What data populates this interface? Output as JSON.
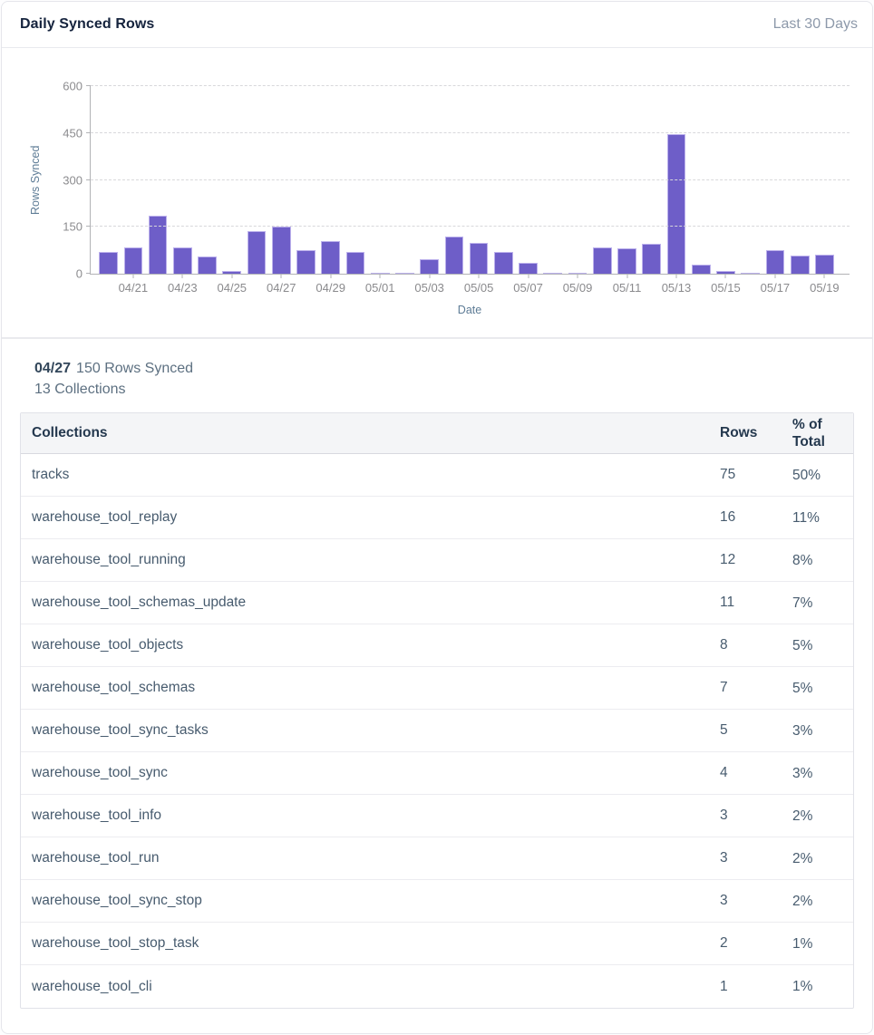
{
  "header": {
    "title": "Daily Synced Rows",
    "range_label": "Last 30 Days"
  },
  "chart_data": {
    "type": "bar",
    "title": "Daily Synced Rows",
    "xlabel": "Date",
    "ylabel": "Rows Synced",
    "ylim": [
      0,
      600
    ],
    "yticks": [
      0,
      150,
      300,
      450,
      600
    ],
    "grid": "horizontal-dashed",
    "legend": "none",
    "x": [
      "04/20",
      "04/21",
      "04/22",
      "04/23",
      "04/24",
      "04/25",
      "04/26",
      "04/27",
      "04/28",
      "04/29",
      "04/30",
      "05/01",
      "05/02",
      "05/03",
      "05/04",
      "05/05",
      "05/06",
      "05/07",
      "05/08",
      "05/09",
      "05/10",
      "05/11",
      "05/12",
      "05/13",
      "05/14",
      "05/15",
      "05/16",
      "05/17",
      "05/18",
      "05/19"
    ],
    "values": [
      70,
      85,
      185,
      85,
      55,
      10,
      135,
      150,
      75,
      105,
      70,
      1,
      1,
      45,
      120,
      100,
      70,
      35,
      2,
      1,
      85,
      80,
      95,
      445,
      30,
      8,
      1,
      75,
      58,
      60
    ],
    "xtick_label_every": 2,
    "bar_color": "#6E5EC8",
    "bar_border_color": "#BCB1EC"
  },
  "detail": {
    "date": "04/27",
    "rows_synced_text": "150 Rows Synced",
    "collections_text": "13 Collections"
  },
  "table": {
    "columns": [
      "Collections",
      "Rows",
      "% of Total"
    ],
    "rows": [
      {
        "name": "tracks",
        "rows": "75",
        "pct": "50%"
      },
      {
        "name": "warehouse_tool_replay",
        "rows": "16",
        "pct": "11%"
      },
      {
        "name": "warehouse_tool_running",
        "rows": "12",
        "pct": "8%"
      },
      {
        "name": "warehouse_tool_schemas_update",
        "rows": "11",
        "pct": "7%"
      },
      {
        "name": "warehouse_tool_objects",
        "rows": "8",
        "pct": "5%"
      },
      {
        "name": "warehouse_tool_schemas",
        "rows": "7",
        "pct": "5%"
      },
      {
        "name": "warehouse_tool_sync_tasks",
        "rows": "5",
        "pct": "3%"
      },
      {
        "name": "warehouse_tool_sync",
        "rows": "4",
        "pct": "3%"
      },
      {
        "name": "warehouse_tool_info",
        "rows": "3",
        "pct": "2%"
      },
      {
        "name": "warehouse_tool_run",
        "rows": "3",
        "pct": "2%"
      },
      {
        "name": "warehouse_tool_sync_stop",
        "rows": "3",
        "pct": "2%"
      },
      {
        "name": "warehouse_tool_stop_task",
        "rows": "2",
        "pct": "1%"
      },
      {
        "name": "warehouse_tool_cli",
        "rows": "1",
        "pct": "1%"
      }
    ]
  }
}
